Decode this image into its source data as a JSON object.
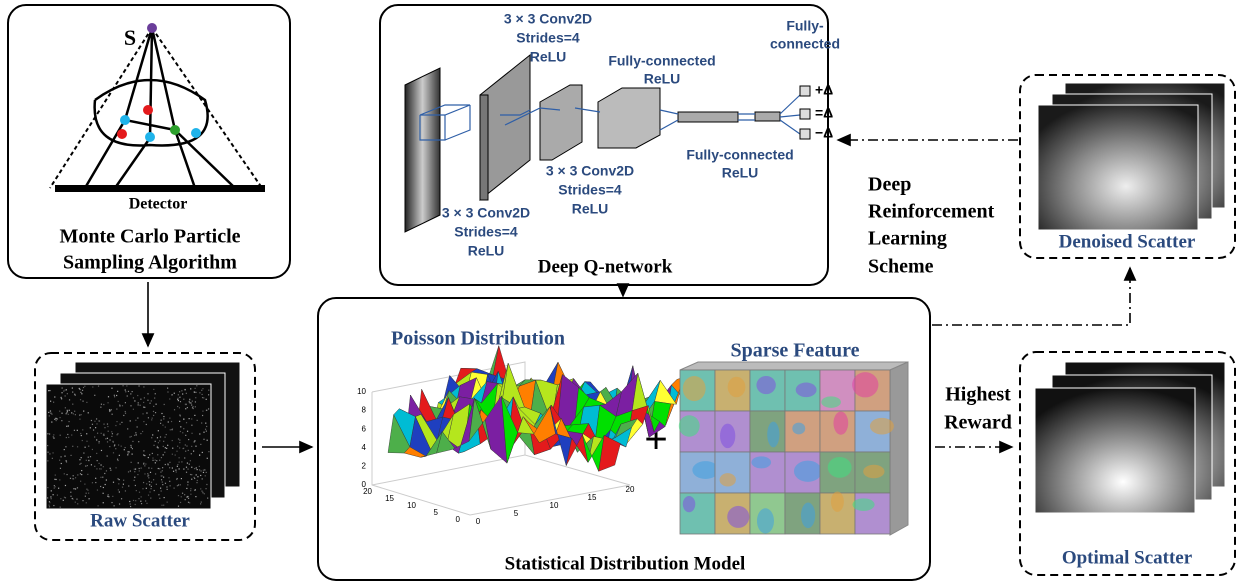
{
  "monte_carlo": {
    "source_label": "S",
    "detector_label": "Detector",
    "title": [
      "Monte Carlo Particle",
      "Sampling Algorithm"
    ]
  },
  "dqn": {
    "conv_layers": [
      {
        "lines": [
          "3 × 3 Conv2D",
          "Strides=4",
          "ReLU"
        ]
      },
      {
        "lines": [
          "3 × 3 Conv2D",
          "Strides=4",
          "ReLU"
        ]
      },
      {
        "lines": [
          "3 × 3 Conv2D",
          "Strides=4",
          "ReLU"
        ]
      }
    ],
    "fc_layers": [
      {
        "lines": [
          "Fully-connected",
          "ReLU"
        ]
      },
      {
        "lines": [
          "Fully-connected",
          "ReLU"
        ]
      },
      {
        "lines": [
          "Fully-",
          "connected"
        ]
      }
    ],
    "actions": [
      "+Δ",
      "=Δ",
      "−Δ"
    ],
    "title": "Deep Q-network"
  },
  "scheme_label": [
    "Deep",
    "Reinforcement",
    "Learning",
    "Scheme"
  ],
  "raw_scatter": {
    "label": "Raw Scatter"
  },
  "denoised_scatter": {
    "label": "Denoised Scatter"
  },
  "optimal_scatter": {
    "label": "Optimal Scatter"
  },
  "highest_reward_label": [
    "Highest",
    "Reward"
  ],
  "statistical_model": {
    "poisson": {
      "title": "Poisson Distribution",
      "z_ticks": [
        0,
        2,
        4,
        6,
        8,
        10
      ],
      "y_ticks": [
        20,
        15,
        10,
        5,
        0
      ],
      "x_ticks": [
        0,
        5,
        10,
        15,
        20
      ]
    },
    "plus": "+",
    "sparse_feature": {
      "title": "Sparse Feature"
    },
    "title": "Statistical Distribution Model"
  }
}
